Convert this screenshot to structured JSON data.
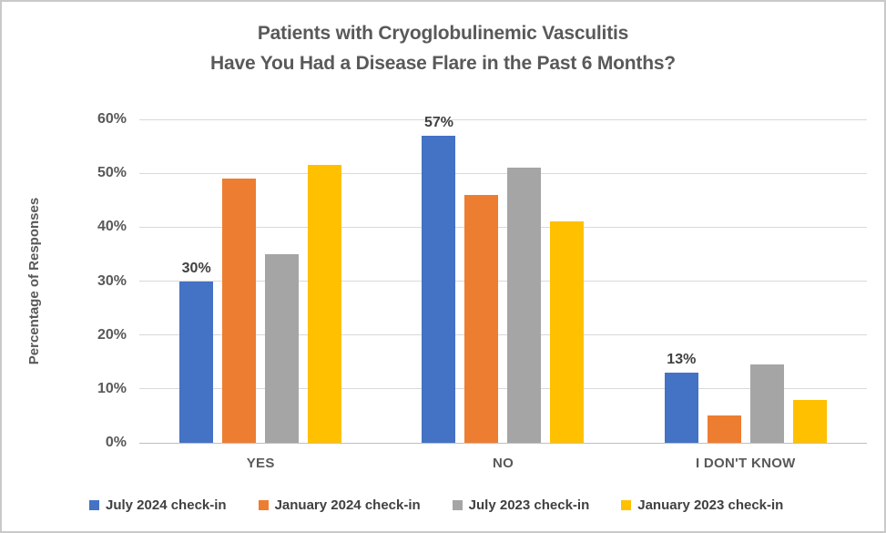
{
  "title": {
    "line1": "Patients with Cryoglobulinemic Vasculitis",
    "line2": "Have You Had a Disease Flare in the Past 6 Months?"
  },
  "chart_data": {
    "type": "bar",
    "title": "Patients with Cryoglobulinemic Vasculitis - Have You Had a Disease Flare in the Past 6 Months?",
    "categories": [
      "YES",
      "NO",
      "I DON'T KNOW"
    ],
    "series": [
      {
        "name": "July 2024 check-in",
        "color": "#4472C4",
        "values": [
          30,
          57,
          13
        ],
        "data_labels": [
          "30%",
          "57%",
          "13%"
        ]
      },
      {
        "name": "January 2024 check-in",
        "color": "#ED7D31",
        "values": [
          49,
          46,
          5
        ],
        "data_labels": null
      },
      {
        "name": "July 2023 check-in",
        "color": "#A5A5A5",
        "values": [
          35,
          51,
          14.5
        ],
        "data_labels": null
      },
      {
        "name": "January 2023 check-in",
        "color": "#FFC000",
        "values": [
          51.5,
          41,
          8
        ],
        "data_labels": null
      }
    ],
    "xlabel": "",
    "ylabel": "Percentage of Responses",
    "ylim": [
      0,
      60
    ],
    "ytick_step": 10,
    "ytick_labels": [
      "0%",
      "10%",
      "20%",
      "30%",
      "40%",
      "50%",
      "60%"
    ],
    "grid": true,
    "legend_position": "bottom"
  },
  "style": {
    "gridline_color": "#d9d9d9",
    "baseline_color": "#bfbfbf",
    "title_color": "#595959",
    "axis_text_color": "#595959",
    "data_label_color": "#404040",
    "background_color": "#ffffff",
    "border_color": "#c9c9c9"
  }
}
